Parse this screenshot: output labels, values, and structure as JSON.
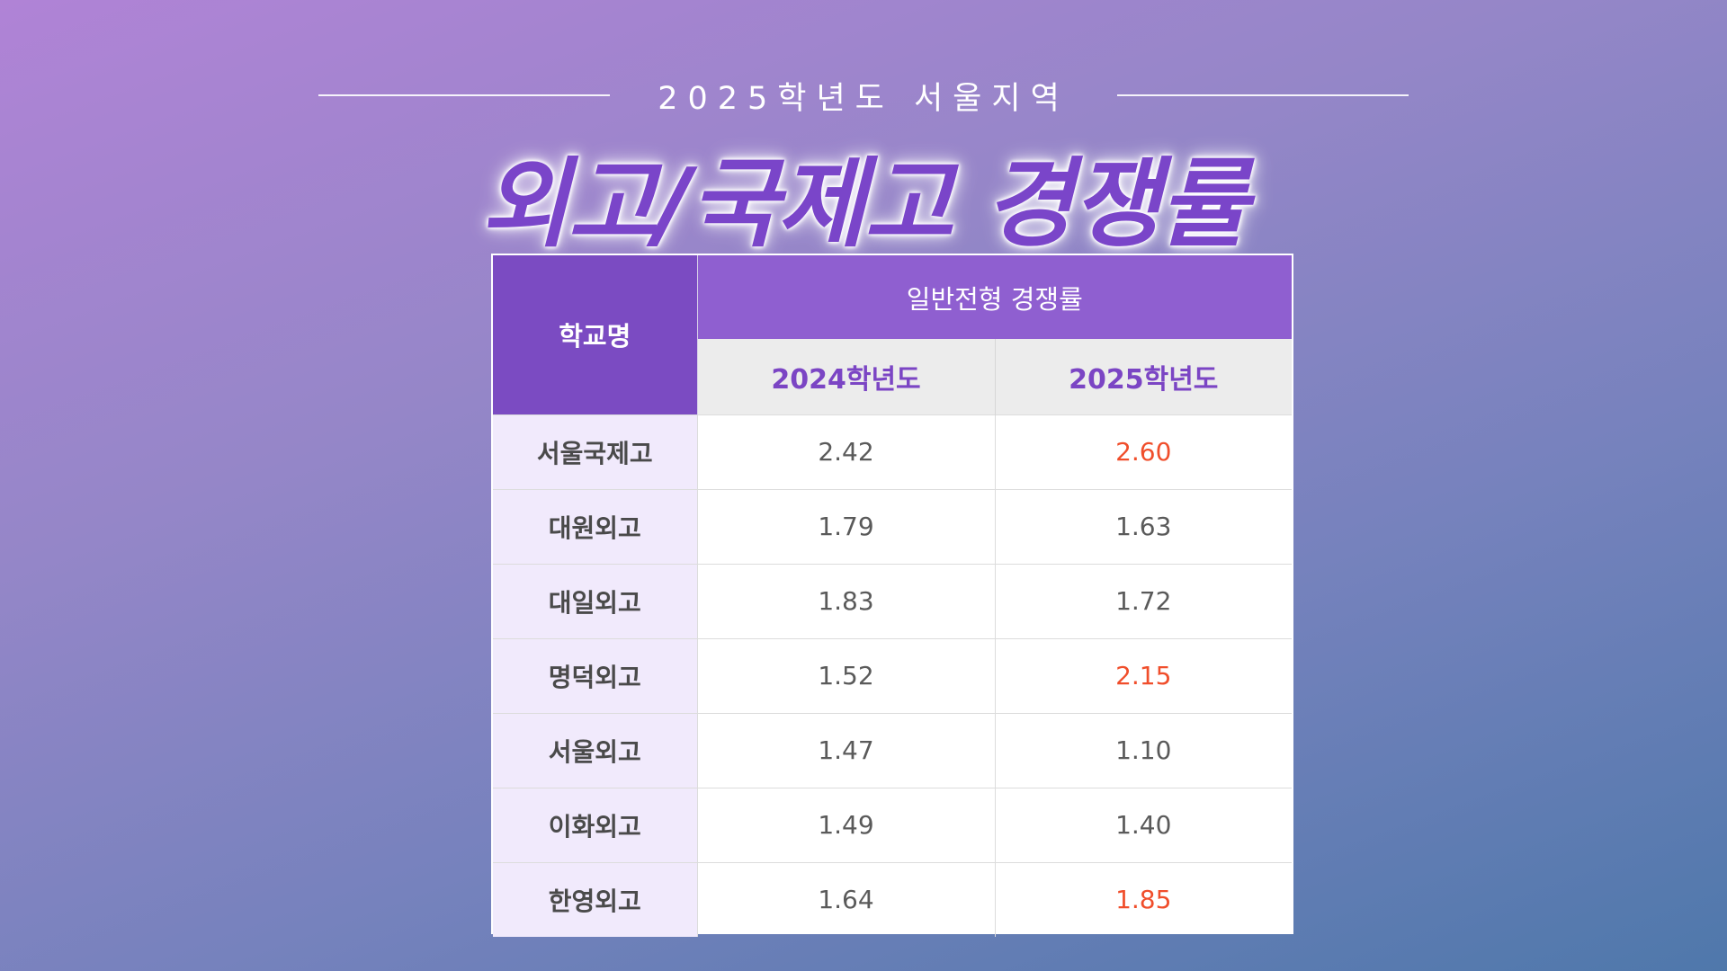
{
  "header": {
    "subtitle": "2025학년도 서울지역",
    "title": "외고/국제고 경쟁률"
  },
  "table": {
    "school_header": "학교명",
    "group_header": "일반전형 경쟁률",
    "year_headers": [
      "2024학년도",
      "2025학년도"
    ],
    "rows": [
      {
        "school": "서울국제고",
        "y2024": "2.42",
        "y2025": "2.60",
        "highlight": true
      },
      {
        "school": "대원외고",
        "y2024": "1.79",
        "y2025": "1.63",
        "highlight": false
      },
      {
        "school": "대일외고",
        "y2024": "1.83",
        "y2025": "1.72",
        "highlight": false
      },
      {
        "school": "명덕외고",
        "y2024": "1.52",
        "y2025": "2.15",
        "highlight": true
      },
      {
        "school": "서울외고",
        "y2024": "1.47",
        "y2025": "1.10",
        "highlight": false
      },
      {
        "school": "이화외고",
        "y2024": "1.49",
        "y2025": "1.40",
        "highlight": false
      },
      {
        "school": "한영외고",
        "y2024": "1.64",
        "y2025": "1.85",
        "highlight": true
      }
    ]
  },
  "colors": {
    "accent_purple": "#7b4bc2",
    "highlight_red": "#f04e2b"
  }
}
